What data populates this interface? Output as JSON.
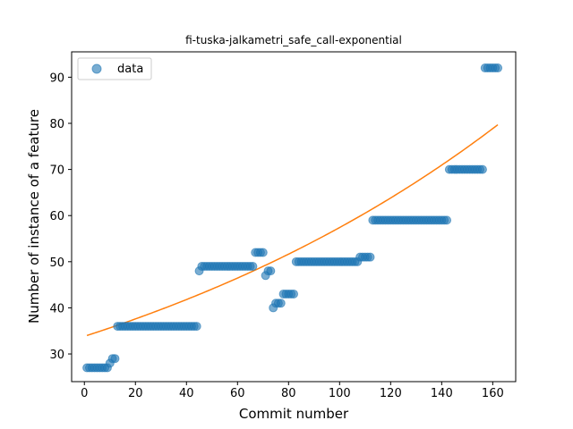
{
  "chart_data": {
    "type": "scatter",
    "title": "fi-tuska-jalkametri_safe_call-exponential",
    "xlabel": "Commit number",
    "ylabel": "Number of instance of a feature",
    "xlim": [
      -5,
      169
    ],
    "ylim": [
      24,
      95.5
    ],
    "xticks": [
      0,
      20,
      40,
      60,
      80,
      100,
      120,
      140,
      160
    ],
    "yticks": [
      30,
      40,
      50,
      60,
      70,
      80,
      90
    ],
    "legend": {
      "position": "top-left",
      "entries": [
        "data"
      ]
    },
    "colors": {
      "data": "#1f77b4",
      "fit": "#ff7f0e"
    },
    "series": [
      {
        "name": "data",
        "kind": "scatter",
        "segments": [
          {
            "x_start": 1,
            "x_end": 9,
            "y": 27
          },
          {
            "x_start": 10,
            "x_end": 10,
            "y": 28
          },
          {
            "x_start": 11,
            "x_end": 12,
            "y": 29
          },
          {
            "x_start": 13,
            "x_end": 44,
            "y": 36
          },
          {
            "x_start": 45,
            "x_end": 45,
            "y": 48
          },
          {
            "x_start": 46,
            "x_end": 66,
            "y": 49
          },
          {
            "x_start": 67,
            "x_end": 70,
            "y": 52
          },
          {
            "x_start": 71,
            "x_end": 71,
            "y": 47
          },
          {
            "x_start": 72,
            "x_end": 73,
            "y": 48
          },
          {
            "x_start": 74,
            "x_end": 74,
            "y": 40
          },
          {
            "x_start": 75,
            "x_end": 77,
            "y": 41
          },
          {
            "x_start": 78,
            "x_end": 82,
            "y": 43
          },
          {
            "x_start": 83,
            "x_end": 107,
            "y": 50
          },
          {
            "x_start": 108,
            "x_end": 112,
            "y": 51
          },
          {
            "x_start": 113,
            "x_end": 142,
            "y": 59
          },
          {
            "x_start": 143,
            "x_end": 156,
            "y": 70
          },
          {
            "x_start": 157,
            "x_end": 162,
            "y": 92
          }
        ]
      },
      {
        "name": "fit",
        "kind": "line",
        "model": "exponential",
        "x_range": [
          1,
          162
        ],
        "y_start": 34,
        "y_end": 79.7
      }
    ]
  }
}
